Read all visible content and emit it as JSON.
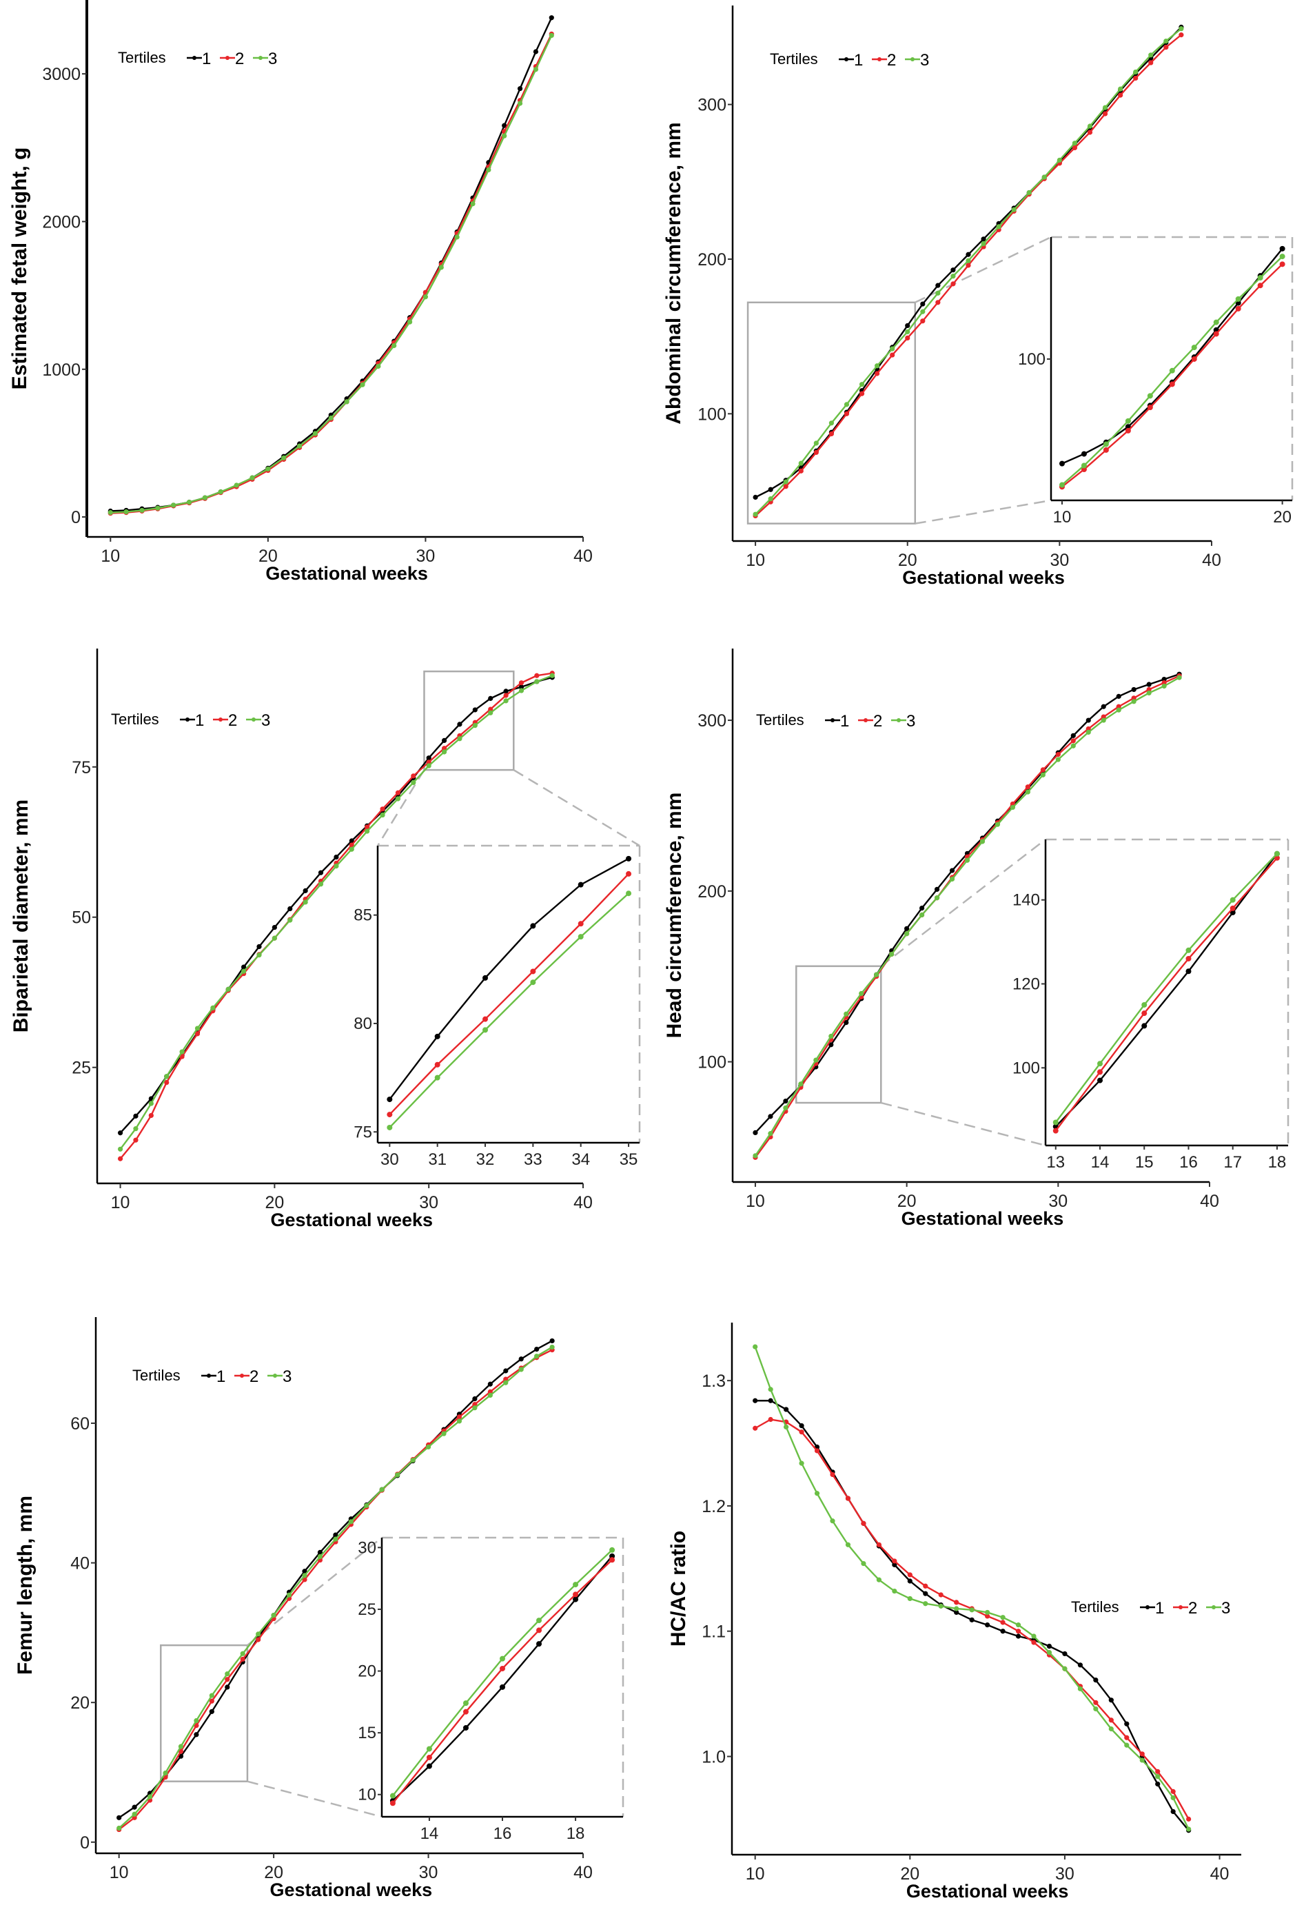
{
  "colors": {
    "1": "#000000",
    "2": "#e8262a",
    "3": "#6abf45",
    "inset_frame": "#aaaaaa",
    "connector": "#b5b5b5"
  },
  "chart_data": [
    {
      "type": "line",
      "xlabel": "Gestational weeks",
      "ylabel": "Estimated fetal weight, g",
      "xlim": [
        8.5,
        40
      ],
      "ylim": [
        -135,
        3500
      ],
      "xticks": [
        10,
        20,
        30,
        40
      ],
      "xtick_labels": [
        "10",
        "20",
        "30",
        "40"
      ],
      "yticks": [
        0,
        1000,
        2000,
        3000
      ],
      "ytick_labels": [
        "0",
        "1000",
        "2000",
        "3000"
      ],
      "legend_title": "Tertiles",
      "x": [
        10,
        11,
        12,
        13,
        14,
        15,
        16,
        17,
        18,
        19,
        20,
        21,
        22,
        23,
        24,
        25,
        26,
        27,
        28,
        29,
        30,
        31,
        32,
        33,
        34,
        35,
        36,
        37,
        38
      ],
      "series": [
        {
          "name": "1",
          "values": [
            40,
            45,
            55,
            65,
            80,
            100,
            130,
            170,
            210,
            265,
            330,
            410,
            495,
            580,
            690,
            800,
            920,
            1050,
            1190,
            1350,
            1520,
            1720,
            1930,
            2160,
            2400,
            2650,
            2900,
            3150,
            3380
          ]
        },
        {
          "name": "2",
          "values": [
            25,
            30,
            40,
            55,
            75,
            95,
            125,
            165,
            205,
            255,
            315,
            390,
            470,
            555,
            660,
            780,
            905,
            1040,
            1180,
            1340,
            1520,
            1710,
            1920,
            2140,
            2370,
            2610,
            2820,
            3050,
            3270
          ]
        },
        {
          "name": "3",
          "values": [
            30,
            35,
            45,
            60,
            80,
            100,
            130,
            170,
            215,
            265,
            325,
            400,
            480,
            565,
            670,
            780,
            895,
            1020,
            1160,
            1320,
            1490,
            1690,
            1895,
            2120,
            2350,
            2580,
            2800,
            3030,
            3260
          ]
        }
      ]
    },
    {
      "type": "line",
      "xlabel": "Gestational weeks",
      "ylabel": "Abdominal circumference, mm",
      "xlim": [
        8.5,
        40
      ],
      "ylim": [
        17.7,
        364
      ],
      "xticks": [
        10,
        20,
        30,
        40
      ],
      "xtick_labels": [
        "10",
        "20",
        "30",
        "40"
      ],
      "yticks": [
        100,
        200,
        300
      ],
      "ytick_labels": [
        "100",
        "200",
        "300"
      ],
      "legend_title": "Tertiles",
      "x": [
        10,
        11,
        12,
        13,
        14,
        15,
        16,
        17,
        18,
        19,
        20,
        21,
        22,
        23,
        24,
        25,
        26,
        27,
        28,
        29,
        30,
        31,
        32,
        33,
        34,
        35,
        36,
        37,
        38
      ],
      "series": [
        {
          "name": "1",
          "values": [
            46,
            51,
            57,
            65,
            76,
            88,
            101,
            115,
            129,
            143,
            157,
            171,
            183,
            193,
            203,
            213,
            223,
            233,
            243,
            253,
            263,
            274,
            285,
            297,
            309,
            320,
            330,
            340,
            350
          ]
        },
        {
          "name": "2",
          "values": [
            34,
            43,
            53,
            63,
            75,
            87,
            100,
            113,
            126,
            138,
            149,
            160,
            172,
            184,
            196,
            208,
            219,
            231,
            242,
            252,
            262,
            272,
            282,
            294,
            306,
            317,
            327,
            337,
            345
          ]
        },
        {
          "name": "3",
          "values": [
            35,
            45,
            56,
            68,
            81,
            94,
            106,
            119,
            131,
            142,
            153,
            166,
            178,
            189,
            199,
            210,
            221,
            232,
            243,
            253,
            264,
            275,
            286,
            298,
            310,
            321,
            332,
            341,
            349
          ]
        }
      ],
      "inset": {
        "region_x": [
          9.5,
          20.5
        ],
        "region_y": [
          29,
          172
        ],
        "xlim": [
          9.5,
          20.45
        ],
        "ylim": [
          27,
          163
        ],
        "xticks": [
          10,
          20
        ],
        "xtick_labels": [
          "10",
          "20"
        ],
        "yticks": [
          100
        ],
        "ytick_labels": [
          "100"
        ]
      }
    },
    {
      "type": "line",
      "xlabel": "Gestational weeks",
      "ylabel": "Biparietal diameter, mm",
      "xlim": [
        8.5,
        40
      ],
      "ylim": [
        5.7,
        94.7
      ],
      "xticks": [
        10,
        20,
        30,
        40
      ],
      "xtick_labels": [
        "10",
        "20",
        "30",
        "40"
      ],
      "yticks": [
        25,
        50,
        75
      ],
      "ytick_labels": [
        "25",
        "50",
        "75"
      ],
      "legend_title": "Tertiles",
      "x": [
        10,
        11,
        12,
        13,
        14,
        15,
        16,
        17,
        18,
        19,
        20,
        21,
        22,
        23,
        24,
        25,
        26,
        27,
        28,
        29,
        30,
        31,
        32,
        33,
        34,
        35,
        36,
        37,
        38
      ],
      "series": [
        {
          "name": "1",
          "values": [
            14.1,
            16.9,
            19.8,
            23.5,
            27.0,
            30.8,
            34.6,
            38.0,
            41.7,
            45.1,
            48.3,
            51.4,
            54.4,
            57.4,
            60.0,
            62.7,
            65.2,
            67.6,
            70.2,
            73.2,
            76.5,
            79.4,
            82.1,
            84.5,
            86.4,
            87.6,
            88.3,
            89.2,
            89.9
          ]
        },
        {
          "name": "2",
          "values": [
            9.8,
            12.9,
            17.0,
            22.5,
            26.8,
            30.6,
            34.4,
            37.8,
            40.6,
            43.8,
            46.5,
            49.6,
            53.0,
            56.0,
            59.0,
            62.0,
            65.0,
            68.0,
            70.7,
            73.5,
            75.8,
            78.1,
            80.2,
            82.4,
            84.6,
            86.9,
            89.0,
            90.2,
            90.6
          ]
        },
        {
          "name": "3",
          "values": [
            11.4,
            14.8,
            19.0,
            23.5,
            27.6,
            31.5,
            34.9,
            38.0,
            41.0,
            43.7,
            46.5,
            49.5,
            52.5,
            55.5,
            58.5,
            61.3,
            64.3,
            67.0,
            69.7,
            72.4,
            75.2,
            77.5,
            79.7,
            81.9,
            84.0,
            86.0,
            87.7,
            89.2,
            90.2
          ]
        }
      ],
      "inset": {
        "region_x": [
          29.7,
          35.5
        ],
        "region_y": [
          74.5,
          90.9
        ],
        "xlim": [
          29.75,
          35.23
        ],
        "ylim": [
          74.5,
          88.2
        ],
        "xticks": [
          30,
          31,
          32,
          33,
          34,
          35
        ],
        "xtick_labels": [
          "30",
          "31",
          "32",
          "33",
          "34",
          "35"
        ],
        "yticks": [
          75,
          80,
          85
        ],
        "ytick_labels": [
          "75",
          "80",
          "85"
        ]
      }
    },
    {
      "type": "line",
      "xlabel": "Gestational weeks",
      "ylabel": "Head circumference, mm",
      "xlim": [
        8.5,
        40
      ],
      "ylim": [
        29.6,
        342
      ],
      "xticks": [
        10,
        20,
        30,
        40
      ],
      "xtick_labels": [
        "10",
        "20",
        "30",
        "40"
      ],
      "yticks": [
        100,
        200,
        300
      ],
      "ytick_labels": [
        "100",
        "200",
        "300"
      ],
      "legend_title": "Tertiles",
      "x": [
        10,
        11,
        12,
        13,
        14,
        15,
        16,
        17,
        18,
        19,
        20,
        21,
        22,
        23,
        24,
        25,
        26,
        27,
        28,
        29,
        30,
        31,
        32,
        33,
        34,
        35,
        36,
        37,
        38
      ],
      "series": [
        {
          "name": "1",
          "values": [
            58.5,
            68,
            77,
            86,
            97,
            110,
            123,
            137,
            151,
            165,
            178,
            190,
            201,
            212,
            222,
            231,
            241,
            250,
            260,
            270,
            281,
            291,
            300,
            308,
            314,
            318,
            321,
            324,
            327
          ]
        },
        {
          "name": "2",
          "values": [
            44,
            56,
            71,
            85,
            99,
            113,
            126,
            138,
            150,
            163,
            175,
            186,
            196,
            208,
            220,
            230,
            240,
            251,
            261,
            271,
            280,
            288,
            295,
            302,
            308,
            313,
            318,
            322,
            326
          ]
        },
        {
          "name": "3",
          "values": [
            45,
            58,
            73,
            87,
            101,
            115,
            128,
            140,
            151,
            163,
            175,
            186,
            196,
            207,
            218,
            229,
            239,
            249,
            258,
            268,
            277,
            285,
            293,
            300,
            306,
            311,
            316,
            320,
            325
          ]
        }
      ],
      "inset": {
        "region_x": [
          12.7,
          18.3
        ],
        "region_y": [
          76,
          156
        ],
        "xlim": [
          12.77,
          18.25
        ],
        "ylim": [
          81.5,
          154.4
        ],
        "xticks": [
          13,
          14,
          15,
          16,
          17,
          18
        ],
        "xtick_labels": [
          "13",
          "14",
          "15",
          "16",
          "17",
          "18"
        ],
        "yticks": [
          100,
          120,
          140
        ],
        "ytick_labels": [
          "100",
          "120",
          "140"
        ]
      }
    },
    {
      "type": "line",
      "xlabel": "Gestational weeks",
      "ylabel": "Femur length, mm",
      "xlim": [
        8.5,
        40
      ],
      "ylim": [
        -1.6,
        75.2
      ],
      "xticks": [
        10,
        20,
        30,
        40
      ],
      "xtick_labels": [
        "10",
        "20",
        "30",
        "40"
      ],
      "yticks": [
        0,
        20,
        40,
        60
      ],
      "ytick_labels": [
        "0",
        "20",
        "40",
        "60"
      ],
      "legend_title": "Tertiles",
      "x": [
        10,
        11,
        12,
        13,
        14,
        15,
        16,
        17,
        18,
        19,
        20,
        21,
        22,
        23,
        24,
        25,
        26,
        27,
        28,
        29,
        30,
        31,
        32,
        33,
        34,
        35,
        36,
        37,
        38
      ],
      "series": [
        {
          "name": "1",
          "values": [
            3.5,
            5.0,
            7.0,
            9.5,
            12.3,
            15.4,
            18.7,
            22.2,
            25.8,
            29.3,
            32.5,
            35.8,
            38.8,
            41.5,
            44.0,
            46.3,
            48.3,
            50.5,
            52.5,
            54.6,
            56.8,
            59.1,
            61.3,
            63.5,
            65.6,
            67.5,
            69.2,
            70.6,
            71.8
          ]
        },
        {
          "name": "2",
          "values": [
            1.8,
            3.5,
            6.0,
            9.3,
            13.0,
            16.7,
            20.2,
            23.3,
            26.2,
            29.0,
            32.0,
            34.9,
            37.6,
            40.4,
            43.0,
            45.5,
            48.0,
            50.4,
            52.7,
            54.8,
            56.9,
            58.9,
            60.9,
            62.7,
            64.5,
            66.3,
            67.9,
            69.4,
            70.5
          ]
        },
        {
          "name": "3",
          "values": [
            2.0,
            4.0,
            6.5,
            9.9,
            13.7,
            17.4,
            21.0,
            24.1,
            27.0,
            29.8,
            32.5,
            35.4,
            38.2,
            40.9,
            43.4,
            45.9,
            48.2,
            50.5,
            52.6,
            54.7,
            56.6,
            58.5,
            60.3,
            62.2,
            64.0,
            65.8,
            67.7,
            69.6,
            70.9
          ]
        }
      ],
      "inset": {
        "region_x": [
          12.7,
          18.3
        ],
        "region_y": [
          8.7,
          28.2
        ],
        "xlim": [
          12.7,
          19.3
        ],
        "ylim": [
          8.2,
          30.8
        ],
        "xticks": [
          14,
          16,
          18
        ],
        "xtick_labels": [
          "14",
          "16",
          "18"
        ],
        "yticks": [
          10,
          15,
          20,
          25,
          30
        ],
        "ytick_labels": [
          "10",
          "15",
          "20",
          "25",
          "30"
        ]
      }
    },
    {
      "type": "line",
      "xlabel": "Gestational weeks",
      "ylabel": "HC/AC ratio",
      "xlim": [
        8.5,
        41.4
      ],
      "ylim": [
        0.9216,
        1.3463
      ],
      "xticks": [
        10,
        20,
        30,
        40
      ],
      "xtick_labels": [
        "10",
        "20",
        "30",
        "40"
      ],
      "yticks": [
        1.0,
        1.1,
        1.2,
        1.3
      ],
      "ytick_labels": [
        "1.0",
        "1.1",
        "1.2",
        "1.3"
      ],
      "legend_title": "Tertiles",
      "x": [
        10,
        11,
        12,
        13,
        14,
        15,
        16,
        17,
        18,
        19,
        20,
        21,
        22,
        23,
        24,
        25,
        26,
        27,
        28,
        29,
        30,
        31,
        32,
        33,
        34,
        35,
        36,
        37,
        38
      ],
      "series": [
        {
          "name": "1",
          "values": [
            1.284,
            1.284,
            1.277,
            1.264,
            1.247,
            1.227,
            1.206,
            1.186,
            1.168,
            1.153,
            1.14,
            1.13,
            1.121,
            1.115,
            1.109,
            1.105,
            1.1,
            1.096,
            1.093,
            1.088,
            1.082,
            1.073,
            1.061,
            1.045,
            1.026,
            1.0,
            0.978,
            0.956,
            0.941
          ]
        },
        {
          "name": "2",
          "values": [
            1.262,
            1.269,
            1.267,
            1.259,
            1.244,
            1.225,
            1.206,
            1.186,
            1.169,
            1.156,
            1.145,
            1.136,
            1.129,
            1.123,
            1.118,
            1.112,
            1.107,
            1.1,
            1.091,
            1.081,
            1.07,
            1.056,
            1.043,
            1.029,
            1.015,
            1.002,
            0.988,
            0.972,
            0.95
          ]
        },
        {
          "name": "3",
          "values": [
            1.327,
            1.293,
            1.263,
            1.234,
            1.21,
            1.188,
            1.169,
            1.154,
            1.141,
            1.132,
            1.126,
            1.122,
            1.12,
            1.118,
            1.117,
            1.115,
            1.111,
            1.105,
            1.096,
            1.083,
            1.07,
            1.054,
            1.038,
            1.022,
            1.009,
            0.997,
            0.984,
            0.967,
            0.942
          ]
        }
      ]
    }
  ]
}
